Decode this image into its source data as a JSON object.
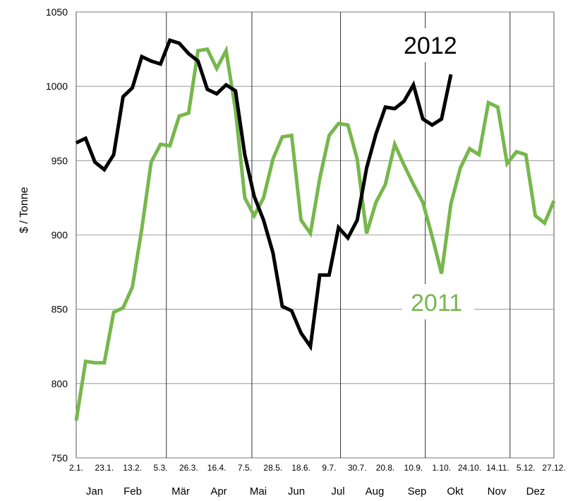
{
  "chart_data": {
    "type": "line",
    "ylabel": "$ / Tonne",
    "ylim": [
      750,
      1050
    ],
    "yticks": [
      750,
      800,
      850,
      900,
      950,
      1000,
      1050
    ],
    "xtick_labels": [
      "2.1.",
      "23.1.",
      "13.2.",
      "5.3.",
      "26.3.",
      "16.4.",
      "7.5.",
      "28.5.",
      "18.6.",
      "9.7.",
      "30.7.",
      "20.8.",
      "10.9.",
      "1.10.",
      "24.10.",
      "14.11.",
      "5.12.",
      "27.12."
    ],
    "months": [
      "Jan",
      "Feb",
      "Mär",
      "Apr",
      "Mai",
      "Jun",
      "Jul",
      "Aug",
      "Sep",
      "Okt",
      "Nov",
      "Dez"
    ],
    "grid": true,
    "series": [
      {
        "name": "2012",
        "color": "#000000",
        "values": [
          962,
          965,
          949,
          944,
          954,
          993,
          999,
          1020,
          1017,
          1015,
          1031,
          1029,
          1022,
          1017,
          998,
          995,
          1001,
          997,
          954,
          926,
          910,
          888,
          852,
          849,
          834,
          825,
          873,
          873,
          905,
          898,
          910,
          945,
          968,
          986,
          985,
          990,
          1001,
          978,
          974,
          978,
          1008
        ]
      },
      {
        "name": "2011",
        "color": "#77b74c",
        "values": [
          775,
          815,
          814,
          814,
          848,
          851,
          865,
          904,
          949,
          961,
          960,
          980,
          982,
          1024,
          1025,
          1012,
          1024,
          984,
          925,
          913,
          925,
          951,
          966,
          967,
          910,
          901,
          938,
          967,
          975,
          974,
          951,
          901,
          922,
          934,
          961,
          947,
          934,
          922,
          899,
          874,
          921,
          945,
          958,
          954,
          989,
          986,
          948,
          956,
          954,
          913,
          908,
          923
        ]
      }
    ]
  }
}
